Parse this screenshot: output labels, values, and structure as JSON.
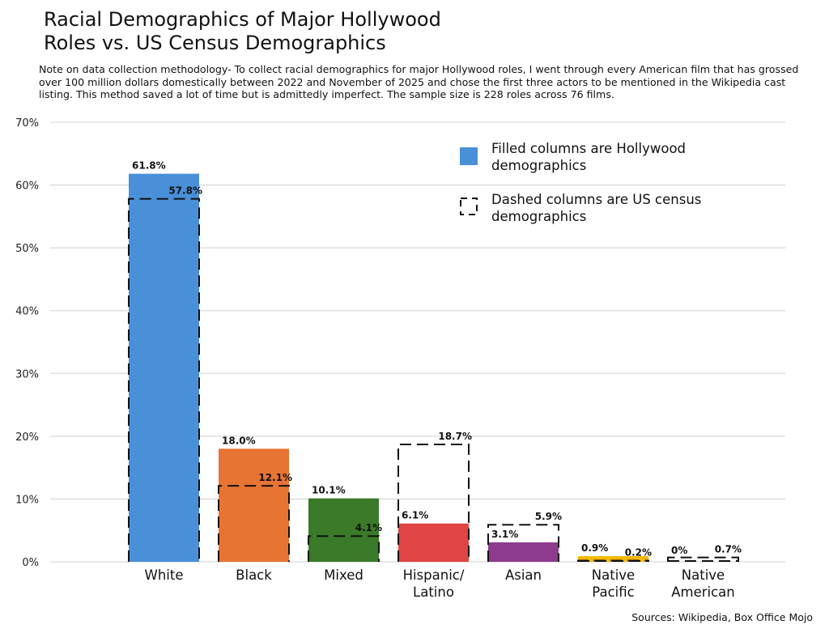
{
  "chart_data": {
    "type": "bar",
    "title": "Racial Demographics of Major Hollywood Roles vs. US Census Demographics",
    "note": "Note on data collection methodology- To collect racial demographics for major Hollywood roles, I went through every American film that has grossed over 100 million dollars domestically between 2022 and November of 2025 and chose the first three actors to be mentioned in the Wikipedia cast listing.  This method saved a lot of time but is admittedly imperfect. The sample size is 228 roles across 76 films.",
    "categories": [
      "White",
      "Black",
      "Mixed",
      "Hispanic/\nLatino",
      "Asian",
      "Native\nPacific",
      "Native\nAmerican"
    ],
    "series": [
      {
        "name": "Filled columns are Hollywood demographics",
        "style": "filled",
        "values": [
          61.8,
          18.0,
          10.1,
          6.1,
          3.1,
          0.9,
          0
        ],
        "labels": [
          "61.8%",
          "18.0%",
          "10.1%",
          "6.1%",
          "3.1%",
          "0.9%",
          "0%"
        ]
      },
      {
        "name": "Dashed columns are US census demographics",
        "style": "dashed",
        "values": [
          57.8,
          12.1,
          4.1,
          18.7,
          5.9,
          0.2,
          0.7
        ],
        "labels": [
          "57.8%",
          "12.1%",
          "4.1%",
          "18.7%",
          "5.9%",
          "0.2%",
          "0.7%"
        ]
      }
    ],
    "colors": [
      "#4a90d9",
      "#e87433",
      "#3a7a28",
      "#e04444",
      "#8e3b8e",
      "#f5b800",
      "#cccccc"
    ],
    "ylim": [
      0,
      70
    ],
    "yticks": [
      "0%",
      "10%",
      "20%",
      "30%",
      "40%",
      "50%",
      "60%",
      "70%"
    ],
    "grid": true,
    "legend_position": "top-right",
    "legend_marker_color": "#4a90d9",
    "source": "Sources: Wikipedia, Box Office Mojo"
  }
}
